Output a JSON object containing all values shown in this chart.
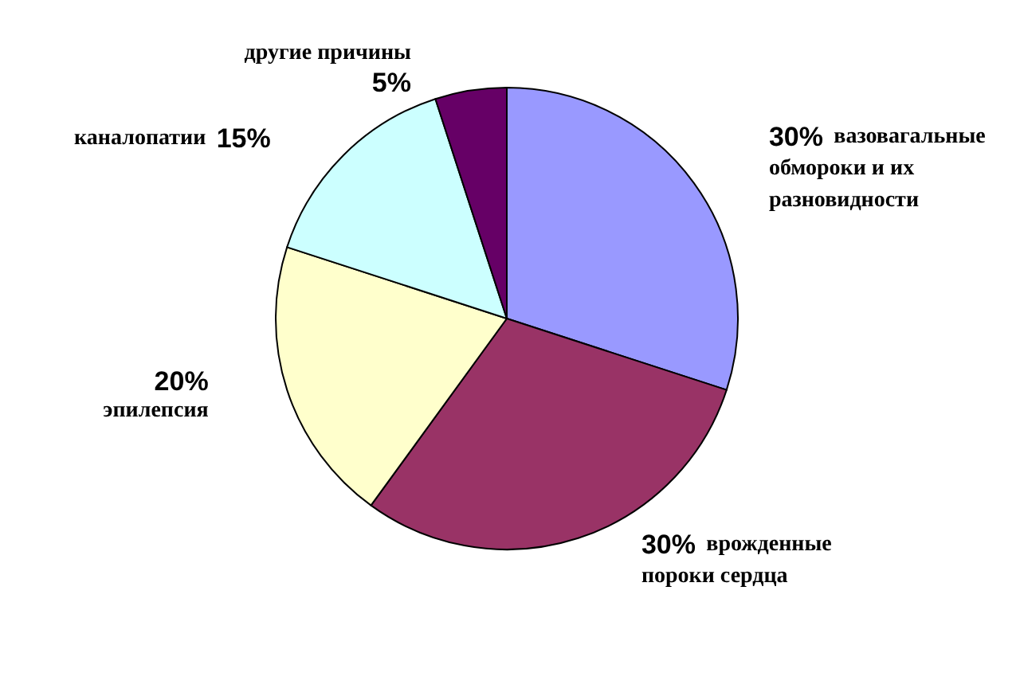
{
  "chart_data": {
    "type": "pie",
    "categories": [
      "вазовагальные обмороки и их разновидности",
      "врожденные пороки сердца",
      "эпилепсия",
      "каналопатии",
      "другие причины"
    ],
    "values": [
      30,
      30,
      20,
      15,
      5
    ],
    "value_labels": [
      "30%",
      "30%",
      "20%",
      "15%",
      "5%"
    ],
    "colors": [
      "#9999ff",
      "#993366",
      "#ffffcc",
      "#ccffff",
      "#660066"
    ],
    "legend": false
  }
}
